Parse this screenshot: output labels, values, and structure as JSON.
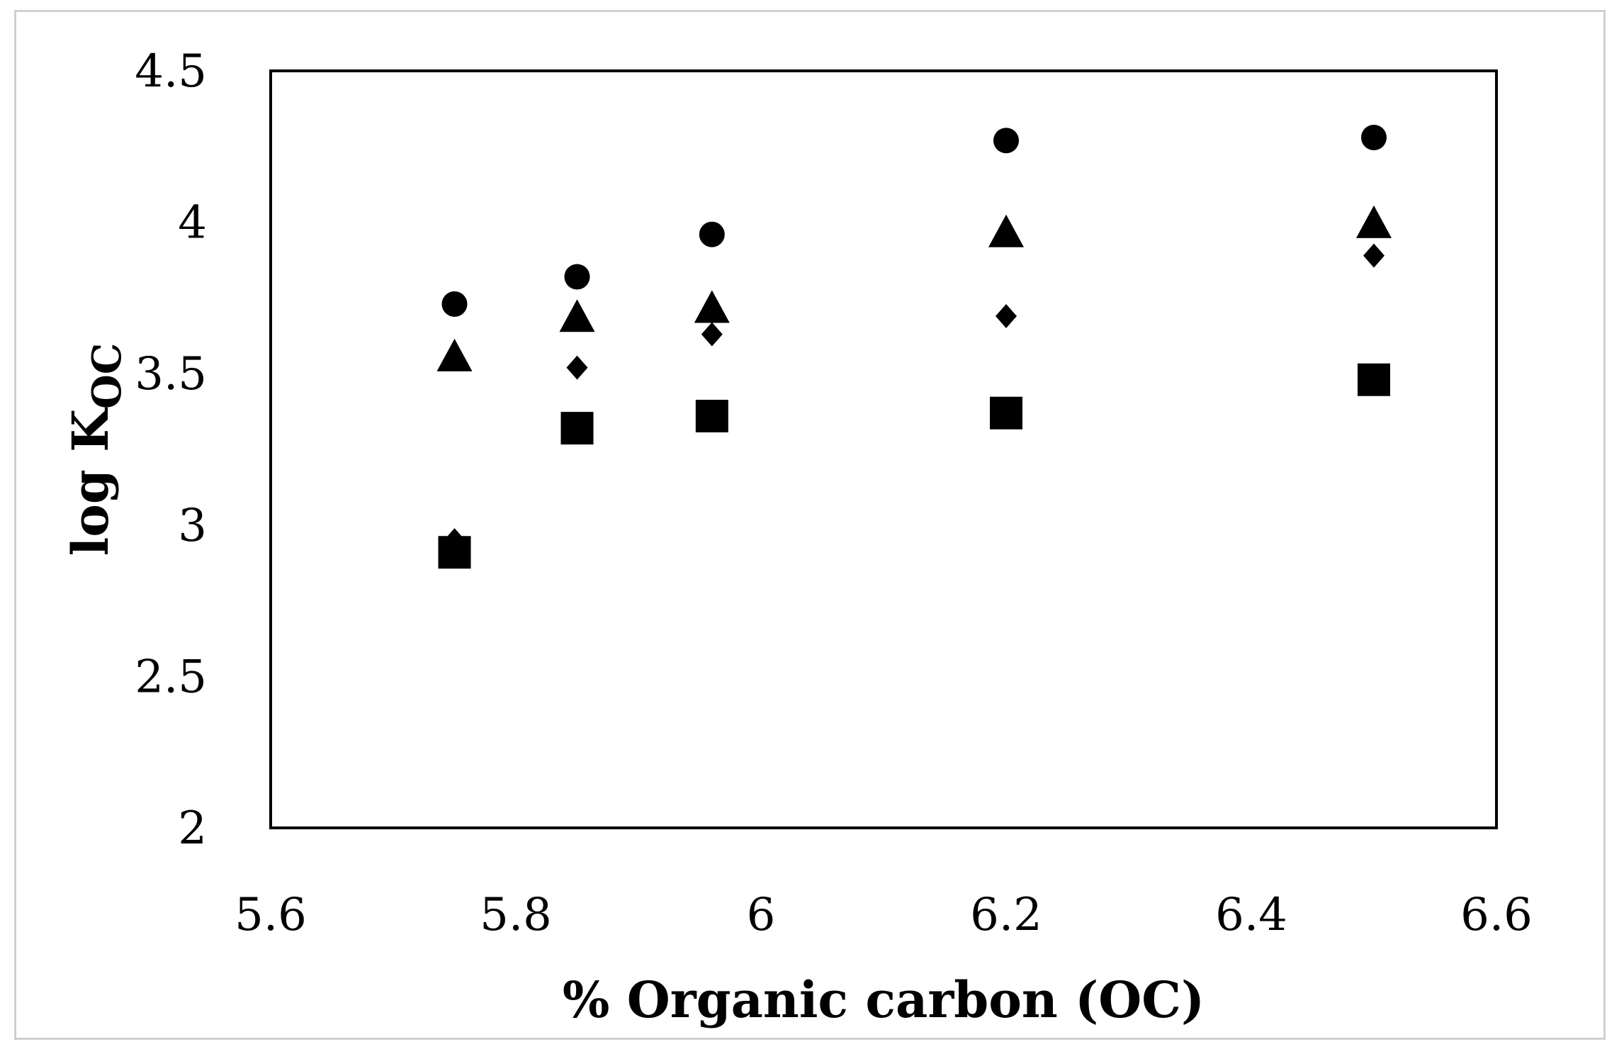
{
  "chart_data": {
    "type": "scatter",
    "title": "",
    "xlabel": "% Organic carbon (OC)",
    "ylabel_main": "log K",
    "ylabel_sub": "OC",
    "xlim": [
      5.6,
      6.6
    ],
    "ylim": [
      2,
      4.5
    ],
    "xticks": [
      5.6,
      5.8,
      6,
      6.2,
      6.4,
      6.6
    ],
    "yticks": [
      2,
      2.5,
      3,
      3.5,
      4,
      4.5
    ],
    "xtick_labels": [
      "5.6",
      "5.8",
      "6",
      "6.2",
      "6.4",
      "6.6"
    ],
    "ytick_labels": [
      "2",
      "2.5",
      "3",
      "3.5",
      "4",
      "4.5"
    ],
    "grid": false,
    "legend": "none",
    "marker_color": "#000000",
    "series": [
      {
        "marker": "circle",
        "x": [
          5.75,
          5.85,
          5.96,
          6.2,
          6.5
        ],
        "y": [
          3.73,
          3.82,
          3.96,
          4.27,
          4.28
        ]
      },
      {
        "marker": "triangle",
        "x": [
          5.75,
          5.85,
          5.96,
          6.2,
          6.5
        ],
        "y": [
          3.55,
          3.68,
          3.71,
          3.96,
          3.99
        ]
      },
      {
        "marker": "diamond",
        "x": [
          5.75,
          5.85,
          5.96,
          6.2,
          6.5
        ],
        "y": [
          2.95,
          3.52,
          3.63,
          3.69,
          3.89
        ]
      },
      {
        "marker": "square",
        "x": [
          5.75,
          5.85,
          5.96,
          6.2,
          6.5
        ],
        "y": [
          2.91,
          3.32,
          3.36,
          3.37,
          3.48
        ]
      }
    ]
  }
}
